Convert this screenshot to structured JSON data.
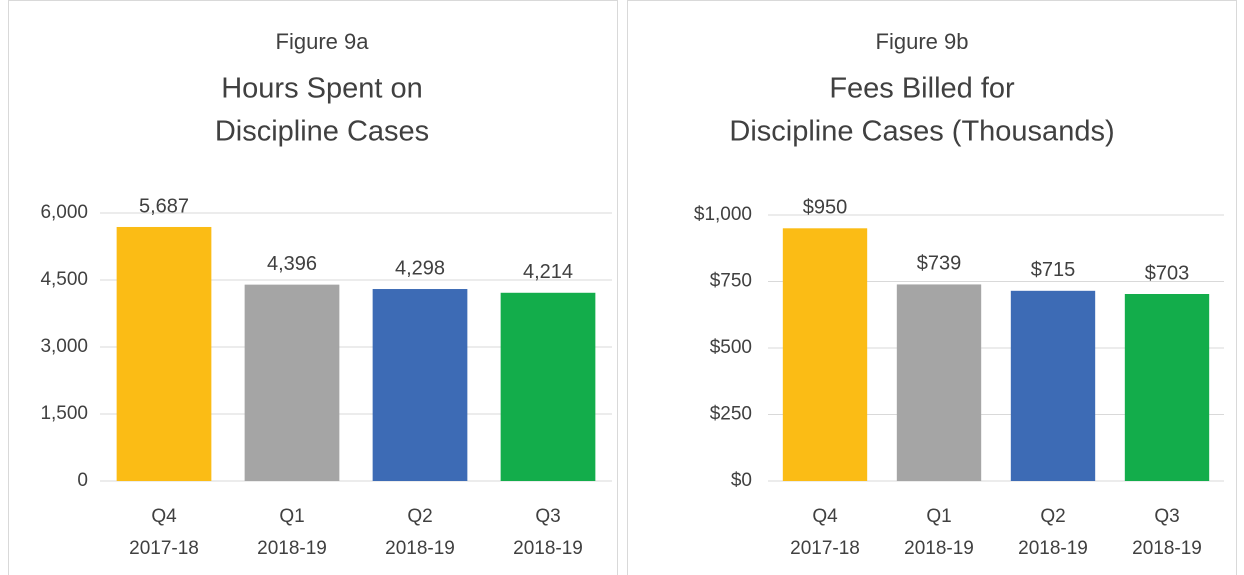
{
  "chart_data": [
    {
      "type": "bar",
      "figure": "Figure 9a",
      "title": [
        "Hours Spent on",
        "Discipline Cases"
      ],
      "categories": [
        [
          "Q4",
          "2017-18"
        ],
        [
          "Q1",
          "2018-19"
        ],
        [
          "Q2",
          "2018-19"
        ],
        [
          "Q3",
          "2018-19"
        ]
      ],
      "values": [
        5687,
        4396,
        4298,
        4214
      ],
      "value_labels": [
        "5,687",
        "4,396",
        "4,298",
        "4,214"
      ],
      "colors": [
        "#fbbc15",
        "#a5a5a5",
        "#3d6bb5",
        "#13ad4b"
      ],
      "ylim": [
        0,
        6000
      ],
      "yticks": [
        0,
        {
          "value": 1500,
          "label": "1,500"
        },
        {
          "value": 3000,
          "label": "3,000"
        },
        {
          "value": 4500,
          "label": "4,500"
        },
        {
          "value": 6000,
          "label": "6,000"
        }
      ],
      "grid": true
    },
    {
      "type": "bar",
      "figure": "Figure 9b",
      "title": [
        "Fees Billed for",
        "Discipline Cases (Thousands)"
      ],
      "categories": [
        [
          "Q4",
          "2017-18"
        ],
        [
          "Q1",
          "2018-19"
        ],
        [
          "Q2",
          "2018-19"
        ],
        [
          "Q3",
          "2018-19"
        ]
      ],
      "values": [
        950,
        739,
        715,
        703
      ],
      "value_labels": [
        "$950",
        "$739",
        "$715",
        "$703"
      ],
      "colors": [
        "#fbbc15",
        "#a5a5a5",
        "#3d6bb5",
        "#13ad4b"
      ],
      "ylim": [
        0,
        1000
      ],
      "yticks": [
        {
          "value": 0,
          "label": "$0"
        },
        {
          "value": 250,
          "label": "$250"
        },
        {
          "value": 500,
          "label": "$500"
        },
        {
          "value": 750,
          "label": "$750"
        },
        {
          "value": 1000,
          "label": "$1,000"
        }
      ],
      "grid": true
    }
  ]
}
